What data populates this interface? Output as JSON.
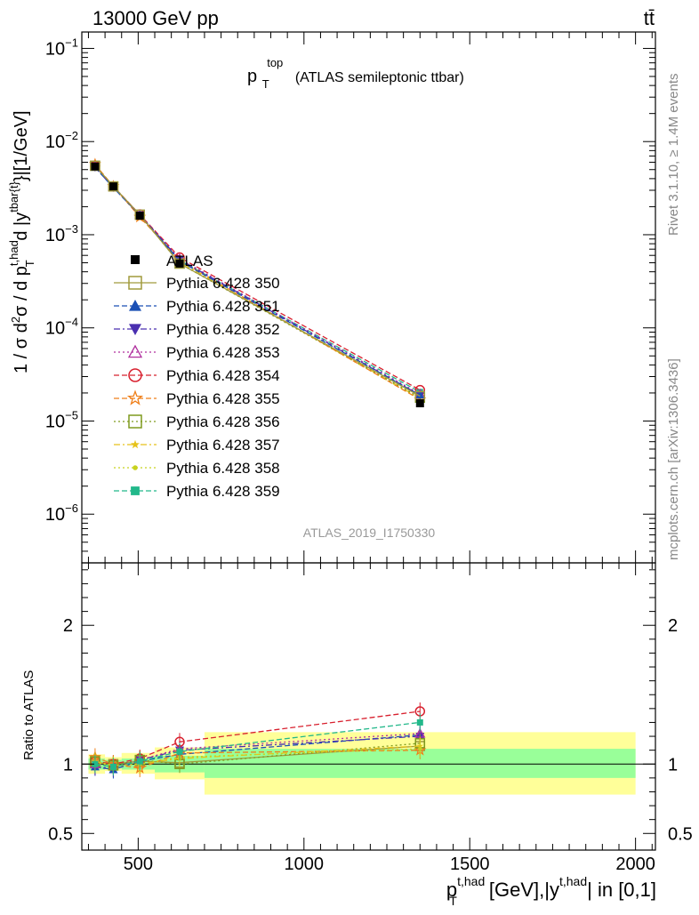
{
  "header": {
    "energy_label": "13000 GeV pp",
    "process_label": "tt̄",
    "rivet_label": "Rivet 3.1.10, ≥ 1.4M events",
    "mcplots_label": "mcplots.cern.ch [arXiv:1306.3436]",
    "analysis_id": "ATLAS_2019_I1750330"
  },
  "chart_data": [
    {
      "type": "line",
      "title_main": "p",
      "title_sup": "top",
      "title_sub": "T",
      "title_rest": "(ATLAS semileptonic ttbar)",
      "ylabel": "1 / σ d²σ / d p_T^{t,had} d |y^{tbar{t}}|[1/GeV]",
      "ylabel_parts": {
        "a": "1 / σ d",
        "b": "2",
        "c": "σ / d p",
        "d": "t,had",
        "e": "T",
        "f": " d |y",
        "g": "tbar{t}",
        "h": "}|[1/GeV]"
      },
      "yscale": "log",
      "ylim": [
        3e-07,
        0.15
      ],
      "xlim": [
        330,
        2060
      ],
      "y_ticks": [
        {
          "value": 0.1,
          "base": "10",
          "exp": "−1"
        },
        {
          "value": 0.01,
          "base": "10",
          "exp": "−2"
        },
        {
          "value": 0.001,
          "base": "10",
          "exp": "−3"
        },
        {
          "value": 0.0001,
          "base": "10",
          "exp": "−4"
        },
        {
          "value": 1e-05,
          "base": "10",
          "exp": "−5"
        },
        {
          "value": 1e-06,
          "base": "10",
          "exp": "−6"
        }
      ],
      "x": [
        370,
        425,
        505,
        625,
        1350
      ],
      "data": {
        "name": "ATLAS",
        "values": [
          0.0054,
          0.0033,
          0.0016,
          0.00049,
          1.55e-05
        ]
      },
      "series": [
        {
          "name": "Pythia 6.428 350",
          "color": "#a09a3c",
          "marker": "open-square",
          "dash": "solid",
          "values": [
            0.0055,
            0.0033,
            0.00164,
            0.00049,
            1.85e-05
          ]
        },
        {
          "name": "Pythia 6.428 351",
          "color": "#1a4fb5",
          "marker": "triangle-up",
          "dash": "dashed",
          "values": [
            0.0053,
            0.0032,
            0.00162,
            0.00052,
            1.9e-05
          ]
        },
        {
          "name": "Pythia 6.428 352",
          "color": "#4a2fb0",
          "marker": "triangle-down",
          "dash": "dashdot",
          "values": [
            0.0053,
            0.0032,
            0.00163,
            0.00054,
            1.9e-05
          ]
        },
        {
          "name": "Pythia 6.428 353",
          "color": "#b02f9e",
          "marker": "open-triangle",
          "dash": "dotted",
          "values": [
            0.0054,
            0.0033,
            0.00164,
            0.00055,
            1.95e-05
          ]
        },
        {
          "name": "Pythia 6.428 354",
          "color": "#d8202e",
          "marker": "open-circle",
          "dash": "dashed",
          "values": [
            0.0055,
            0.0033,
            0.00165,
            0.00057,
            2.15e-05
          ]
        },
        {
          "name": "Pythia 6.428 355",
          "color": "#ef7f1a",
          "marker": "open-star",
          "dash": "dashed",
          "values": [
            0.0057,
            0.0033,
            0.00155,
            0.00053,
            1.7e-05
          ]
        },
        {
          "name": "Pythia 6.428 356",
          "color": "#7f9a1e",
          "marker": "open-square",
          "dash": "dotted",
          "values": [
            0.0055,
            0.0033,
            0.00164,
            0.00049,
            1.78e-05
          ]
        },
        {
          "name": "Pythia 6.428 357",
          "color": "#e6c21a",
          "marker": "star-small",
          "dash": "dashdot",
          "values": [
            0.0055,
            0.0033,
            0.0016,
            0.00051,
            1.75e-05
          ]
        },
        {
          "name": "Pythia 6.428 358",
          "color": "#c8d21e",
          "marker": "dot-small",
          "dash": "dotted",
          "values": [
            0.0055,
            0.0033,
            0.0016,
            0.00051,
            1.72e-05
          ]
        },
        {
          "name": "Pythia 6.428 359",
          "color": "#22b88a",
          "marker": "filled-square",
          "dash": "dashed",
          "values": [
            0.0054,
            0.0033,
            0.00162,
            0.00053,
            2.05e-05
          ]
        }
      ],
      "legend_position": "middle-left"
    },
    {
      "type": "line",
      "ylabel": "Ratio to ATLAS",
      "ylim": [
        0.38,
        2.45
      ],
      "xlim": [
        330,
        2060
      ],
      "y_ticks": [
        {
          "value": 2,
          "label": "2"
        },
        {
          "value": 1,
          "label": "1"
        },
        {
          "value": 0.5,
          "label": "0.5"
        }
      ],
      "x_ticks": [
        {
          "value": 500,
          "label": "500"
        },
        {
          "value": 1000,
          "label": "1000"
        },
        {
          "value": 1500,
          "label": "1500"
        },
        {
          "value": 2000,
          "label": "2000"
        }
      ],
      "xlabel_parts": {
        "a": "p",
        "b": "t,had",
        "c": "T",
        "d": " [GeV],|y",
        "e": "t,had",
        "f": "| in [0,1]"
      },
      "bands": [
        {
          "x0": 350,
          "x1": 400,
          "stat_lo": 0.96,
          "stat_hi": 1.04,
          "tot_lo": 0.93,
          "tot_hi": 1.07
        },
        {
          "x0": 400,
          "x1": 450,
          "stat_lo": 0.97,
          "stat_hi": 1.03,
          "tot_lo": 0.95,
          "tot_hi": 1.05
        },
        {
          "x0": 450,
          "x1": 550,
          "stat_lo": 0.96,
          "stat_hi": 1.04,
          "tot_lo": 0.93,
          "tot_hi": 1.08
        },
        {
          "x0": 550,
          "x1": 700,
          "stat_lo": 0.94,
          "stat_hi": 1.06,
          "tot_lo": 0.89,
          "tot_hi": 1.12
        },
        {
          "x0": 700,
          "x1": 2000,
          "stat_lo": 0.9,
          "stat_hi": 1.11,
          "tot_lo": 0.78,
          "tot_hi": 1.23
        }
      ],
      "x": [
        370,
        425,
        505,
        625,
        1350
      ],
      "ratio_values": [
        [
          1.01,
          1.0,
          1.02,
          1.01,
          1.13
        ],
        [
          0.98,
          0.96,
          1.02,
          1.07,
          1.21
        ],
        [
          0.98,
          0.97,
          1.03,
          1.1,
          1.2
        ],
        [
          1.0,
          0.99,
          1.03,
          1.11,
          1.22
        ],
        [
          1.02,
          1.0,
          1.04,
          1.16,
          1.38
        ],
        [
          1.05,
          1.0,
          0.97,
          1.08,
          1.1
        ],
        [
          1.02,
          0.99,
          1.03,
          1.0,
          1.15
        ],
        [
          1.02,
          0.99,
          1.0,
          1.04,
          1.13
        ],
        [
          1.01,
          0.99,
          1.0,
          1.05,
          1.11
        ],
        [
          1.0,
          0.98,
          1.02,
          1.09,
          1.3
        ]
      ]
    }
  ]
}
